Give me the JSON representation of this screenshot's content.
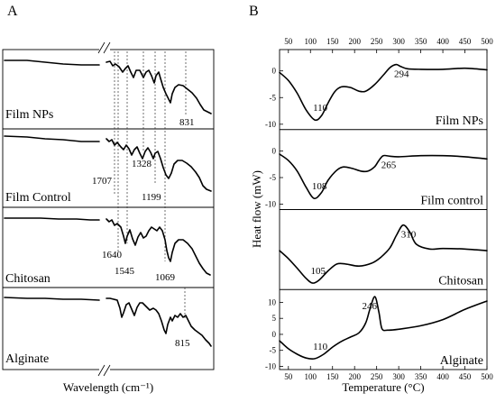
{
  "figure": {
    "panel_a_letter": "A",
    "panel_b_letter": "B"
  },
  "chart_data": [
    {
      "type": "line",
      "panel": "A",
      "xlabel": "Wavelength (cm⁻¹)",
      "ylabel": "",
      "x_axis_break": true,
      "tick_labels": [],
      "series": [
        {
          "name": "Film NPs",
          "peak_labels": [
            "831"
          ]
        },
        {
          "name": "Film Control",
          "peak_labels": [
            "1707",
            "1328",
            "1199"
          ]
        },
        {
          "name": "Chitosan",
          "peak_labels": [
            "1640",
            "1545",
            "1069"
          ]
        },
        {
          "name": "Alginate",
          "peak_labels": [
            "815"
          ]
        }
      ],
      "grid": false
    },
    {
      "type": "line",
      "panel": "B",
      "xlabel": "Temperature (°C)",
      "ylabel": "Heat flow (mW)",
      "xlim": [
        30,
        500
      ],
      "x_ticks": [
        50,
        100,
        150,
        200,
        250,
        300,
        350,
        400,
        450,
        500
      ],
      "x_tick_labels": [
        "50",
        "100",
        "150",
        "200",
        "250",
        "300",
        "350",
        "400",
        "450",
        "500"
      ],
      "subplots": [
        {
          "name": "Film NPs",
          "ylim": [
            -11,
            4
          ],
          "y_ticks": [
            0,
            -5,
            -10
          ],
          "y_tick_labels": [
            "0",
            "-5",
            "-10"
          ],
          "peak_labels": [
            {
              "text": "110",
              "x": 110
            },
            {
              "text": "294",
              "x": 294
            }
          ],
          "x": [
            30,
            50,
            70,
            90,
            110,
            125,
            140,
            155,
            170,
            190,
            210,
            225,
            245,
            265,
            280,
            294,
            305,
            320,
            350,
            400,
            450,
            500
          ],
          "y": [
            -0.3,
            -1.8,
            -4.2,
            -7.3,
            -9.2,
            -8.4,
            -6.0,
            -3.9,
            -3.0,
            -3.1,
            -3.8,
            -3.8,
            -2.6,
            -0.8,
            0.6,
            1.2,
            0.8,
            0.4,
            0.3,
            0.3,
            0.5,
            0.2
          ]
        },
        {
          "name": "Film control",
          "ylim": [
            -11,
            4
          ],
          "y_ticks": [
            0,
            -5,
            -10
          ],
          "y_tick_labels": [
            "0",
            "-5",
            "-10"
          ],
          "peak_labels": [
            {
              "text": "108",
              "x": 108
            },
            {
              "text": "265",
              "x": 265
            }
          ],
          "x": [
            30,
            50,
            70,
            90,
            108,
            125,
            140,
            160,
            175,
            195,
            215,
            230,
            245,
            255,
            265,
            280,
            300,
            350,
            400,
            450,
            500
          ],
          "y": [
            -0.6,
            -1.8,
            -3.8,
            -6.8,
            -8.9,
            -7.8,
            -5.5,
            -3.6,
            -3.0,
            -3.3,
            -3.8,
            -3.8,
            -3.0,
            -1.8,
            -0.9,
            -1.0,
            -1.1,
            -0.9,
            -0.9,
            -1.1,
            -1.5
          ]
        },
        {
          "name": "Chitosan",
          "ylim": [
            -7,
            8
          ],
          "y_ticks": [],
          "y_tick_labels": [],
          "peak_labels": [
            {
              "text": "105",
              "x": 105
            },
            {
              "text": "310",
              "x": 310
            }
          ],
          "x": [
            30,
            50,
            70,
            90,
            105,
            120,
            140,
            160,
            180,
            210,
            240,
            260,
            280,
            295,
            310,
            325,
            340,
            370,
            400,
            450,
            500
          ],
          "y": [
            0.3,
            -1.2,
            -3.0,
            -4.9,
            -5.8,
            -5.2,
            -3.5,
            -2.2,
            -2.2,
            -2.6,
            -2.0,
            -0.9,
            0.8,
            3.2,
            5.1,
            3.8,
            1.5,
            0.6,
            0.7,
            0.6,
            0.3
          ]
        },
        {
          "name": "Alginate",
          "ylim": [
            -11,
            14
          ],
          "y_ticks": [
            10,
            5,
            0,
            -5,
            -10
          ],
          "y_tick_labels": [
            "10",
            "5",
            "0",
            "-5",
            "-10"
          ],
          "peak_labels": [
            {
              "text": "110",
              "x": 110
            },
            {
              "text": "246",
              "x": 246
            }
          ],
          "x": [
            30,
            50,
            70,
            90,
            110,
            130,
            150,
            170,
            190,
            210,
            225,
            235,
            246,
            255,
            262,
            275,
            300,
            350,
            400,
            450,
            500
          ],
          "y": [
            -2.0,
            -4.5,
            -6.2,
            -7.4,
            -7.6,
            -6.2,
            -4.0,
            -2.2,
            -0.9,
            0.5,
            3.5,
            8.0,
            11.8,
            7.0,
            1.8,
            1.3,
            1.6,
            2.7,
            4.6,
            7.8,
            10.4
          ]
        }
      ],
      "grid": false,
      "legend": "none"
    }
  ]
}
